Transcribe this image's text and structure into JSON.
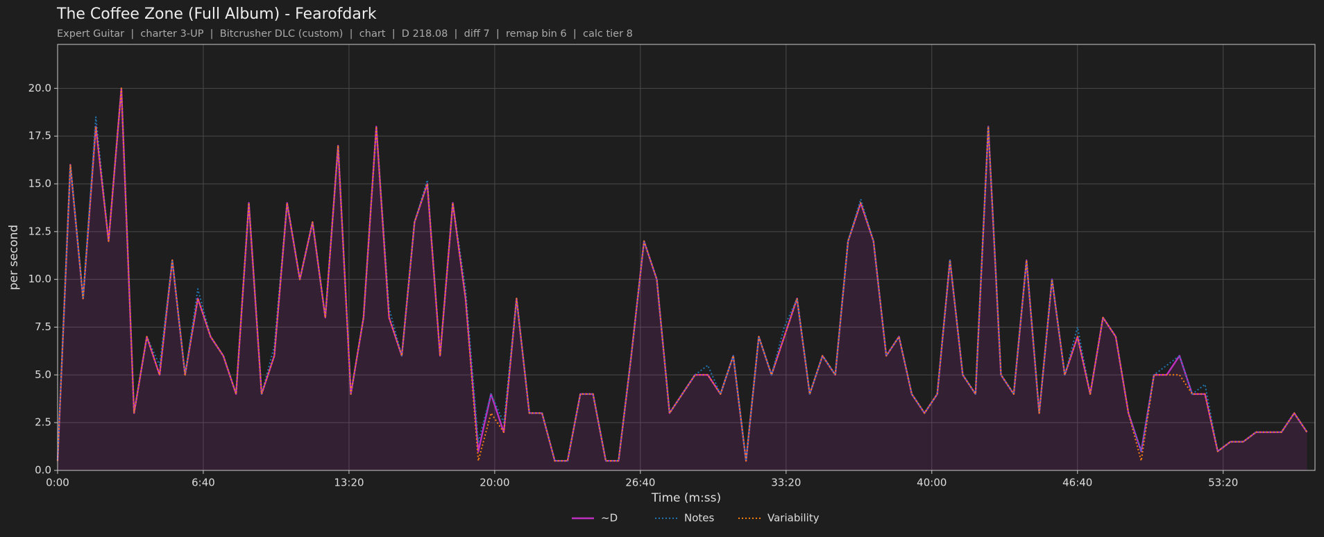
{
  "chart_data": {
    "type": "line",
    "title": "The Coffee Zone (Full Album) - Fearofdark",
    "subtitle": "Expert Guitar  |  charter 3-UP  |  Bitcrusher DLC (custom)  |  chart  |  D 218.08  |  diff 7  |  remap bin 6  |  calc tier 8",
    "xlabel": "Time (m:ss)",
    "ylabel": "per second",
    "x": [
      0,
      35,
      70,
      105,
      140,
      175,
      210,
      245,
      280,
      315,
      350,
      385,
      420,
      455,
      490,
      525,
      560,
      595,
      630,
      665,
      700,
      735,
      770,
      805,
      840,
      875,
      910,
      945,
      980,
      1015,
      1050,
      1085,
      1120,
      1155,
      1190,
      1225,
      1260,
      1295,
      1330,
      1365,
      1400,
      1435,
      1470,
      1505,
      1540,
      1575,
      1610,
      1645,
      1680,
      1715,
      1750,
      1785,
      1820,
      1855,
      1890,
      1925,
      1960,
      1995,
      2030,
      2065,
      2100,
      2135,
      2170,
      2205,
      2240,
      2275,
      2310,
      2345,
      2380,
      2415,
      2450,
      2485,
      2520,
      2555,
      2590,
      2625,
      2660,
      2695,
      2730,
      2765,
      2800,
      2835,
      2870,
      2905,
      2940,
      2975,
      3010,
      3045,
      3080,
      3115,
      3150,
      3185,
      3220,
      3255,
      3290,
      3325,
      3360,
      3395,
      3430
    ],
    "series": [
      {
        "name": "~D",
        "color": "#c030c0",
        "values": [
          0.5,
          16,
          9,
          18,
          12,
          20,
          3,
          7,
          5,
          11,
          5,
          9,
          7,
          6,
          4,
          14,
          4,
          6,
          14,
          10,
          13,
          8,
          17,
          4,
          8,
          18,
          8,
          6,
          13,
          15,
          6,
          14,
          9,
          1,
          4,
          2,
          9,
          3,
          3,
          0.5,
          0.5,
          4,
          4,
          0.5,
          0.5,
          6,
          12,
          10,
          3,
          4,
          5,
          5,
          4,
          6,
          0.5,
          7,
          5,
          7,
          9,
          4,
          6,
          5,
          12,
          14,
          12,
          6,
          7,
          4,
          3,
          4,
          11,
          5,
          4,
          18,
          5,
          4,
          11,
          3,
          10,
          5,
          7,
          4,
          8,
          7,
          3,
          1,
          5,
          5,
          6,
          4,
          4,
          1,
          1.5,
          1.5,
          2,
          2,
          2,
          3,
          2
        ]
      },
      {
        "name": "Notes",
        "color": "#1f77b4",
        "values": [
          0.6,
          16,
          9,
          18.5,
          12,
          20,
          3,
          7,
          5.5,
          11,
          5,
          9.5,
          7,
          6,
          4,
          14,
          4,
          6.5,
          14,
          10,
          13,
          8,
          17,
          4,
          8,
          18,
          8.5,
          6,
          13,
          15.2,
          6,
          14,
          9.5,
          1.5,
          4,
          2.5,
          9,
          3,
          3,
          0.5,
          0.5,
          4,
          4,
          0.5,
          0.5,
          6,
          12,
          10,
          3,
          4,
          5,
          5.5,
          4,
          6,
          0.5,
          7,
          5,
          7.5,
          9,
          4,
          6,
          5,
          12,
          14.2,
          12,
          6,
          7,
          4,
          3,
          4,
          11,
          5,
          4,
          18,
          5,
          4,
          11,
          3,
          10,
          5,
          7.5,
          4,
          8,
          7,
          3,
          1,
          5,
          5.5,
          6,
          4,
          4.5,
          1,
          1.5,
          1.5,
          2,
          2,
          2,
          3,
          2
        ]
      },
      {
        "name": "Variability",
        "color": "#ff7f0e",
        "values": [
          0.5,
          16,
          9,
          18,
          12,
          20,
          3,
          7,
          5,
          11,
          5,
          9,
          7,
          6,
          4,
          14,
          4,
          6,
          14,
          10,
          13,
          8,
          17,
          4,
          8,
          18,
          8,
          6,
          13,
          15,
          6,
          14,
          9,
          0.5,
          3,
          2,
          9,
          3,
          3,
          0.5,
          0.5,
          4,
          4,
          0.5,
          0.5,
          6,
          12,
          10,
          3,
          4,
          5,
          5,
          4,
          6,
          0.5,
          7,
          5,
          7,
          9,
          4,
          6,
          5,
          12,
          14,
          12,
          6,
          7,
          4,
          3,
          4,
          11,
          5,
          4,
          18,
          5,
          4,
          11,
          3,
          10,
          5,
          7,
          4,
          8,
          7,
          3,
          0.5,
          5,
          5,
          5,
          4,
          4,
          1,
          1.5,
          1.5,
          2,
          2,
          2,
          3,
          2
        ]
      }
    ],
    "xlim": [
      0,
      3452
    ],
    "ylim": [
      0,
      22.3
    ],
    "xticks": [
      {
        "value": 0,
        "label": "0:00"
      },
      {
        "value": 400,
        "label": "6:40"
      },
      {
        "value": 800,
        "label": "13:20"
      },
      {
        "value": 1200,
        "label": "20:00"
      },
      {
        "value": 1600,
        "label": "26:40"
      },
      {
        "value": 2000,
        "label": "33:20"
      },
      {
        "value": 2400,
        "label": "40:00"
      },
      {
        "value": 2800,
        "label": "46:40"
      },
      {
        "value": 3200,
        "label": "53:20"
      }
    ],
    "yticks": [
      {
        "value": 0,
        "label": "0.0"
      },
      {
        "value": 2.5,
        "label": "2.5"
      },
      {
        "value": 5,
        "label": "5.0"
      },
      {
        "value": 7.5,
        "label": "7.5"
      },
      {
        "value": 10,
        "label": "10.0"
      },
      {
        "value": 12.5,
        "label": "12.5"
      },
      {
        "value": 15,
        "label": "15.0"
      },
      {
        "value": 17.5,
        "label": "17.5"
      },
      {
        "value": 20,
        "label": "20.0"
      }
    ],
    "grid": true,
    "legend": "bottom"
  }
}
